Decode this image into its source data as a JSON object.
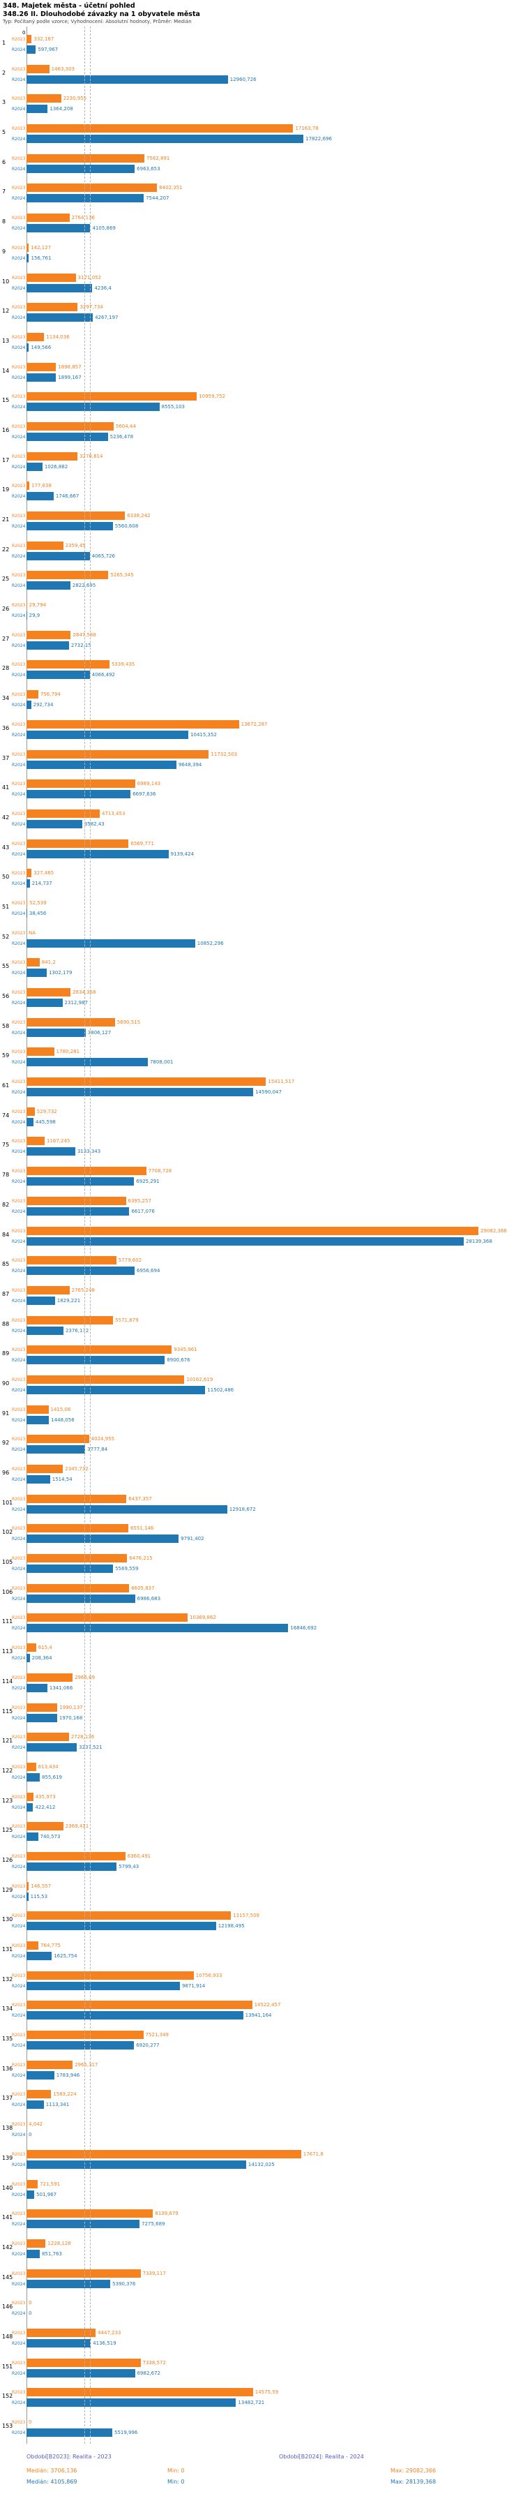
{
  "header": {
    "title": "348. Majetek města - účetní pohled",
    "subtitle": "348.26 II. Dlouhodobé závazky na 1 obyvatele města",
    "meta": "Typ: Počítaný podle vzorce; Vyhodnocení: Absolutní hodnoty, Průměr: Medián"
  },
  "chart_data": {
    "type": "bar",
    "orientation": "horizontal",
    "title": "348.26 II. Dlouhodobé závazky na 1 obyvatele města",
    "series_labels": {
      "s2023": "R2023",
      "s2024": "R2024"
    },
    "colors": {
      "s2023": "#F5821F",
      "s2024": "#1F77B4",
      "period_label": "#5B5BC8"
    },
    "median_line_color": "#b5b5b5",
    "axis": {
      "zero_label": "0",
      "max_value": 29082.366,
      "xlim": [
        0,
        29082.366
      ],
      "grid": "median-lines-only"
    },
    "medians": {
      "m2023": 3706.136,
      "m2024": 4105.869
    },
    "rows": [
      {
        "num": "1",
        "v2023": "332,187",
        "v2024": "597,967"
      },
      {
        "num": "2",
        "v2023": "1463,303",
        "v2024": "12960,726"
      },
      {
        "num": "3",
        "v2023": "2230,955",
        "v2024": "1364,208"
      },
      {
        "num": "5",
        "v2023": "17163,78",
        "v2024": "17822,696"
      },
      {
        "num": "6",
        "v2023": "7582,891",
        "v2024": "6963,653"
      },
      {
        "num": "7",
        "v2023": "8402,351",
        "v2024": "7544,207"
      },
      {
        "num": "8",
        "v2023": "2764,136",
        "v2024": "4105,869"
      },
      {
        "num": "9",
        "v2023": "142,127",
        "v2024": "156,761"
      },
      {
        "num": "10",
        "v2023": "3171,052",
        "v2024": "4236,4"
      },
      {
        "num": "12",
        "v2023": "3297,734",
        "v2024": "4267,197"
      },
      {
        "num": "13",
        "v2023": "1134,036",
        "v2024": "149,566"
      },
      {
        "num": "14",
        "v2023": "1898,857",
        "v2024": "1899,167"
      },
      {
        "num": "15",
        "v2023": "10959,752",
        "v2024": "8555,103"
      },
      {
        "num": "16",
        "v2023": "5604,44",
        "v2024": "5236,478"
      },
      {
        "num": "17",
        "v2023": "3278,814",
        "v2024": "1026,882"
      },
      {
        "num": "19",
        "v2023": "177,638",
        "v2024": "1746,667"
      },
      {
        "num": "21",
        "v2023": "6338,242",
        "v2024": "5560,608"
      },
      {
        "num": "22",
        "v2023": "2359,45",
        "v2024": "4065,726"
      },
      {
        "num": "25",
        "v2023": "5265,345",
        "v2024": "2822,695"
      },
      {
        "num": "26",
        "v2023": "29,794",
        "v2024": "29,9"
      },
      {
        "num": "27",
        "v2023": "2847,588",
        "v2024": "2732,15"
      },
      {
        "num": "28",
        "v2023": "5339,435",
        "v2024": "4066,492"
      },
      {
        "num": "34",
        "v2023": "756,794",
        "v2024": "292,734"
      },
      {
        "num": "36",
        "v2023": "13672,287",
        "v2024": "10415,352"
      },
      {
        "num": "37",
        "v2023": "11732,503",
        "v2024": "9648,394"
      },
      {
        "num": "41",
        "v2023": "6989,143",
        "v2024": "6697,636"
      },
      {
        "num": "42",
        "v2023": "4713,453",
        "v2024": "3582,43"
      },
      {
        "num": "43",
        "v2023": "6569,771",
        "v2024": "9139,424"
      },
      {
        "num": "50",
        "v2023": "327,465",
        "v2024": "214,737"
      },
      {
        "num": "51",
        "v2023": "52,539",
        "v2024": "38,456"
      },
      {
        "num": "52",
        "v2023": "NA",
        "v2024": "10852,296"
      },
      {
        "num": "55",
        "v2023": "841,2",
        "v2024": "1302,179"
      },
      {
        "num": "56",
        "v2023": "2834,368",
        "v2024": "2312,987"
      },
      {
        "num": "58",
        "v2023": "5690,515",
        "v2024": "3806,127"
      },
      {
        "num": "59",
        "v2023": "1780,281",
        "v2024": "7808,001"
      },
      {
        "num": "61",
        "v2023": "15411,517",
        "v2024": "14590,047"
      },
      {
        "num": "74",
        "v2023": "529,732",
        "v2024": "445,598"
      },
      {
        "num": "75",
        "v2023": "1167,245",
        "v2024": "3133,343"
      },
      {
        "num": "78",
        "v2023": "7708,728",
        "v2024": "6925,291"
      },
      {
        "num": "82",
        "v2023": "6395,257",
        "v2024": "6617,076"
      },
      {
        "num": "84",
        "v2023": "29082,366",
        "v2024": "28139,368"
      },
      {
        "num": "85",
        "v2023": "5779,602",
        "v2024": "6956,694"
      },
      {
        "num": "87",
        "v2023": "2765,248",
        "v2024": "1829,221"
      },
      {
        "num": "88",
        "v2023": "5571,879",
        "v2024": "2376,172"
      },
      {
        "num": "89",
        "v2023": "9345,961",
        "v2024": "8900,676"
      },
      {
        "num": "90",
        "v2023": "10162,619",
        "v2024": "11502,486"
      },
      {
        "num": "91",
        "v2023": "1415,06",
        "v2024": "1448,056"
      },
      {
        "num": "92",
        "v2023": "4024,955",
        "v2024": "3777,84"
      },
      {
        "num": "96",
        "v2023": "2345,732",
        "v2024": "1514,54"
      },
      {
        "num": "101",
        "v2023": "6437,357",
        "v2024": "12918,672"
      },
      {
        "num": "102",
        "v2023": "6551,146",
        "v2024": "9791,402"
      },
      {
        "num": "105",
        "v2023": "6476,215",
        "v2024": "5569,559"
      },
      {
        "num": "106",
        "v2023": "6605,837",
        "v2024": "6986,683"
      },
      {
        "num": "111",
        "v2023": "10369,862",
        "v2024": "16846,692"
      },
      {
        "num": "113",
        "v2023": "615,4",
        "v2024": "208,364"
      },
      {
        "num": "114",
        "v2023": "2966,69",
        "v2024": "1341,066"
      },
      {
        "num": "115",
        "v2023": "1990,137",
        "v2024": "1970,168"
      },
      {
        "num": "121",
        "v2023": "2728,136",
        "v2024": "3237,521"
      },
      {
        "num": "122",
        "v2023": "613,434",
        "v2024": "855,619"
      },
      {
        "num": "123",
        "v2023": "435,973",
        "v2024": "422,412"
      },
      {
        "num": "125",
        "v2023": "2369,411",
        "v2024": "740,573"
      },
      {
        "num": "126",
        "v2023": "6360,491",
        "v2024": "5799,43"
      },
      {
        "num": "129",
        "v2023": "146,557",
        "v2024": "115,53"
      },
      {
        "num": "130",
        "v2023": "13157,509",
        "v2024": "12198,495"
      },
      {
        "num": "131",
        "v2023": "764,775",
        "v2024": "1625,754"
      },
      {
        "num": "132",
        "v2023": "10756,933",
        "v2024": "9871,914"
      },
      {
        "num": "134",
        "v2023": "14522,457",
        "v2024": "13941,164"
      },
      {
        "num": "135",
        "v2023": "7521,349",
        "v2024": "6920,277"
      },
      {
        "num": "136",
        "v2023": "2965,317",
        "v2024": "1783,946"
      },
      {
        "num": "137",
        "v2023": "1583,224",
        "v2024": "1113,341"
      },
      {
        "num": "138",
        "v2023": "4,042",
        "v2024": "0"
      },
      {
        "num": "139",
        "v2023": "17671,8",
        "v2024": "14132,025"
      },
      {
        "num": "140",
        "v2023": "721,591",
        "v2024": "501,967"
      },
      {
        "num": "141",
        "v2023": "8139,679",
        "v2024": "7275,689"
      },
      {
        "num": "142",
        "v2023": "1228,128",
        "v2024": "851,763"
      },
      {
        "num": "145",
        "v2023": "7339,117",
        "v2024": "5390,376"
      },
      {
        "num": "146",
        "v2023": "0",
        "v2024": "0"
      },
      {
        "num": "148",
        "v2023": "4447,233",
        "v2024": "4136,519"
      },
      {
        "num": "151",
        "v2023": "7338,572",
        "v2024": "6982,672"
      },
      {
        "num": "152",
        "v2023": "14575,59",
        "v2024": "13482,721"
      },
      {
        "num": "153",
        "v2023": "0",
        "v2024": "5519,996"
      }
    ]
  },
  "footer": {
    "period_2023": "Období[B2023]: Realita - 2023",
    "period_2024": "Období[B2024]: Realita - 2024",
    "median_2023": "Medián: 3706,136",
    "min_2023": "Min: 0",
    "max_2023": "Max: 29082,366",
    "median_2024": "Medián: 4105,869",
    "min_2024": "Min: 0",
    "max_2024": "Max: 28139,368"
  }
}
